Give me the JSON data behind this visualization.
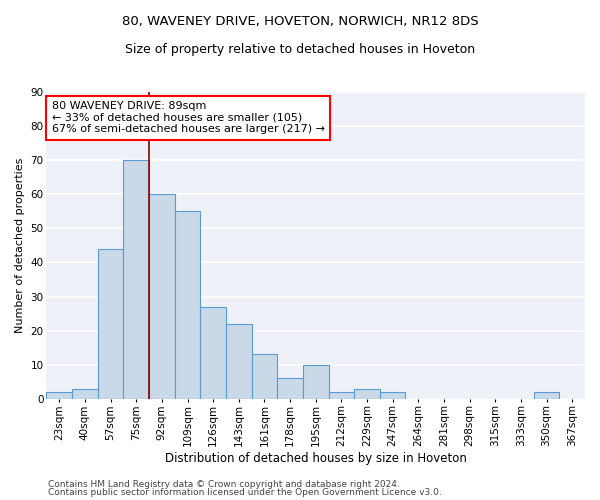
{
  "title1": "80, WAVENEY DRIVE, HOVETON, NORWICH, NR12 8DS",
  "title2": "Size of property relative to detached houses in Hoveton",
  "xlabel": "Distribution of detached houses by size in Hoveton",
  "ylabel": "Number of detached properties",
  "categories": [
    "23sqm",
    "40sqm",
    "57sqm",
    "75sqm",
    "92sqm",
    "109sqm",
    "126sqm",
    "143sqm",
    "161sqm",
    "178sqm",
    "195sqm",
    "212sqm",
    "229sqm",
    "247sqm",
    "264sqm",
    "281sqm",
    "298sqm",
    "315sqm",
    "333sqm",
    "350sqm",
    "367sqm"
  ],
  "values": [
    2,
    3,
    44,
    70,
    60,
    55,
    27,
    22,
    13,
    6,
    10,
    2,
    3,
    2,
    0,
    0,
    0,
    0,
    0,
    2,
    0
  ],
  "bar_color": "#c9d9e8",
  "bar_edge_color": "#5b9bd5",
  "annotation_line1": "80 WAVENEY DRIVE: 89sqm",
  "annotation_line2": "← 33% of detached houses are smaller (105)",
  "annotation_line3": "67% of semi-detached houses are larger (217) →",
  "footer1": "Contains HM Land Registry data © Crown copyright and database right 2024.",
  "footer2": "Contains public sector information licensed under the Open Government Licence v3.0.",
  "ylim": [
    0,
    90
  ],
  "yticks": [
    0,
    10,
    20,
    30,
    40,
    50,
    60,
    70,
    80,
    90
  ],
  "bg_color": "#eef2f8",
  "grid_color": "#ffffff",
  "red_line_x": 3.5,
  "title1_fontsize": 9.5,
  "title2_fontsize": 9,
  "xlabel_fontsize": 8.5,
  "ylabel_fontsize": 8,
  "tick_fontsize": 7.5,
  "ann_fontsize": 8,
  "footer_fontsize": 6.5
}
